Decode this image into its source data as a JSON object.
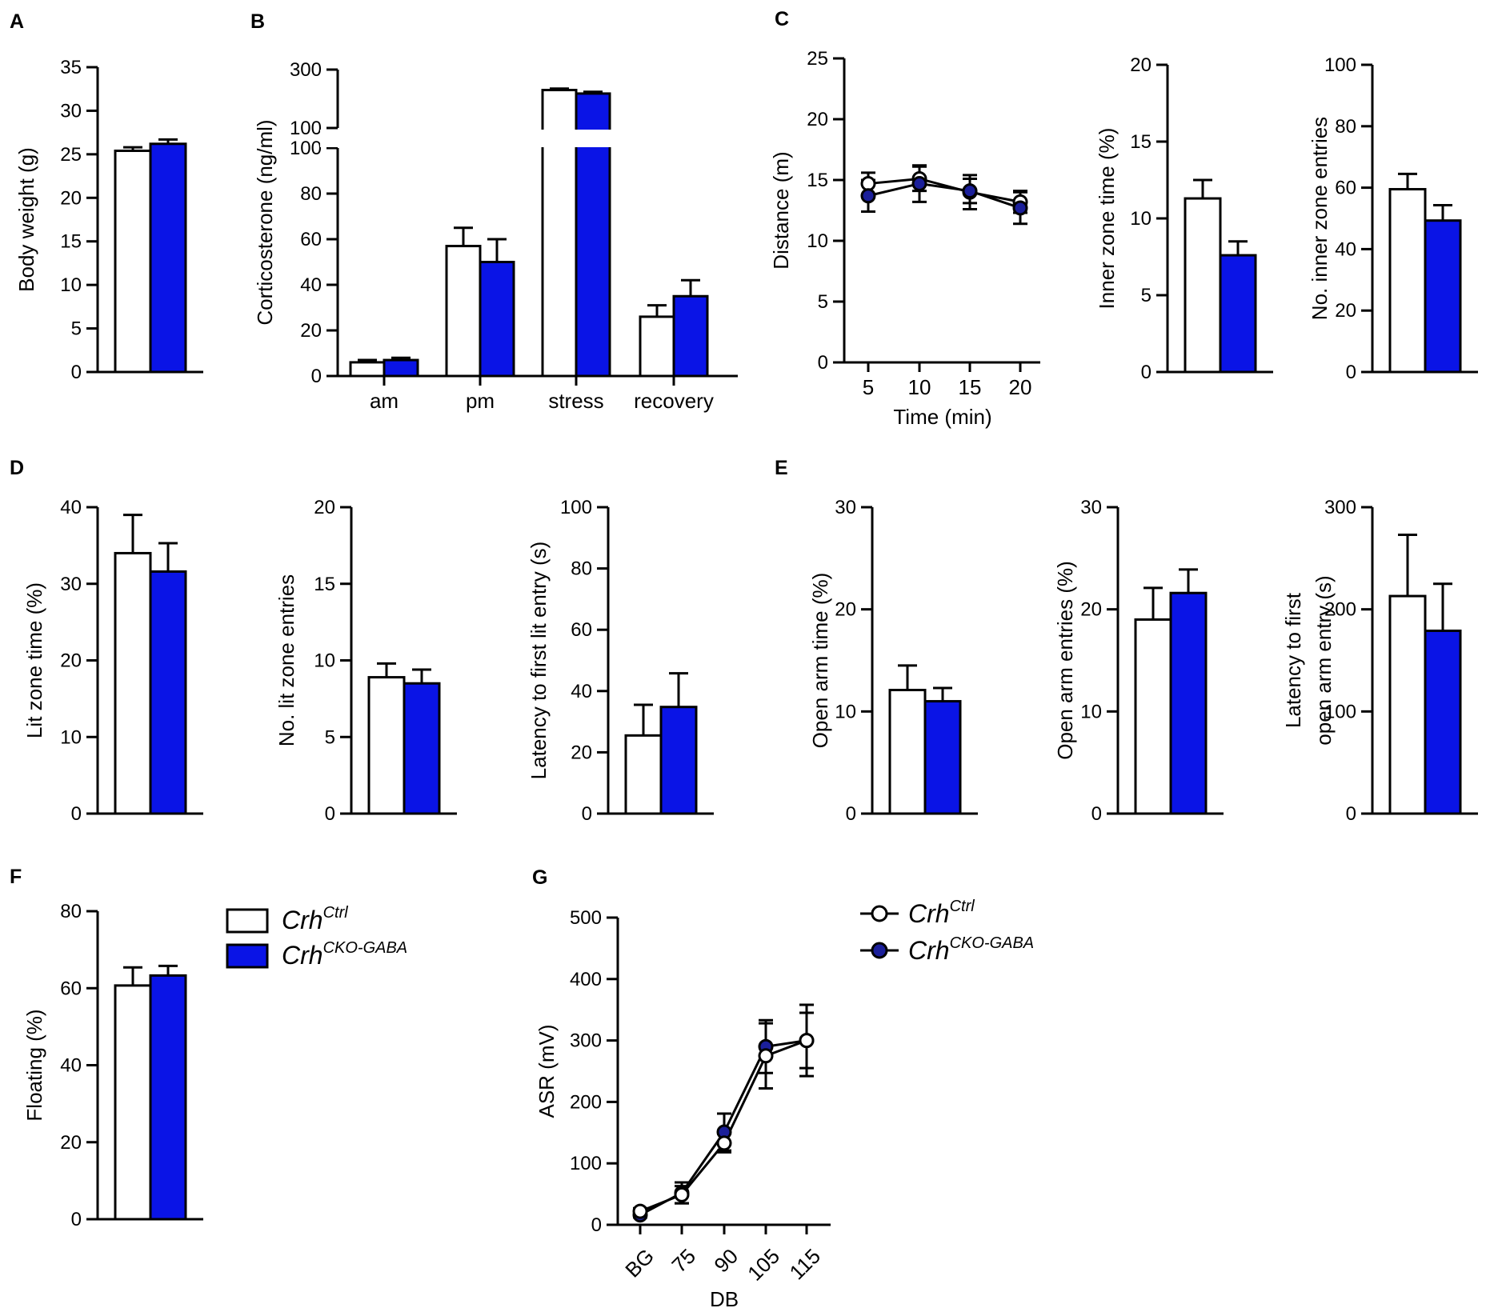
{
  "figure": {
    "legend_bar": {
      "ctrl": "Crh",
      "ctrl_sup": "Ctrl",
      "cko": "Crh",
      "cko_sup": "CKO-GABA"
    },
    "legend_line": {
      "ctrl": "Crh",
      "ctrl_sup": "Ctrl",
      "cko": "Crh",
      "cko_sup": "CKO-GABA"
    }
  },
  "colors": {
    "ctrl": "#ffffff",
    "cko": "#0a14e6",
    "cko_marker": "#1b1f9a",
    "axis": "#000000"
  },
  "chart_data": [
    {
      "id": "A",
      "panel_label": "A",
      "type": "bar",
      "ylabel": "Body weight (g)",
      "ylim": [
        0,
        35
      ],
      "yticks": [
        0,
        5,
        10,
        15,
        20,
        25,
        30,
        35
      ],
      "categories": [
        ""
      ],
      "series": [
        {
          "name": "CrhCtrl",
          "values": [
            25.4
          ],
          "errors": [
            0.4
          ]
        },
        {
          "name": "CrhCKO-GABA",
          "values": [
            26.2
          ],
          "errors": [
            0.5
          ]
        }
      ]
    },
    {
      "id": "B",
      "panel_label": "B",
      "type": "bar",
      "ylabel": "Corticosterone (ng/ml)",
      "broken_axis": true,
      "ylim": [
        0,
        300
      ],
      "ylim_lower": [
        0,
        100
      ],
      "ylim_upper": [
        100,
        300
      ],
      "yticks_lower": [
        0,
        20,
        40,
        60,
        80,
        100
      ],
      "yticks_upper": [
        100,
        300
      ],
      "categories": [
        "am",
        "pm",
        "stress",
        "recovery"
      ],
      "series": [
        {
          "name": "CrhCtrl",
          "values": [
            6,
            57,
            230,
            26
          ],
          "errors": [
            1,
            8,
            5,
            5
          ]
        },
        {
          "name": "CrhCKO-GABA",
          "values": [
            7,
            50,
            218,
            35
          ],
          "errors": [
            1,
            10,
            6,
            7
          ]
        }
      ]
    },
    {
      "id": "C1",
      "panel_label": "C",
      "type": "line",
      "ylabel": "Distance (m)",
      "xlabel": "Time (min)",
      "ylim": [
        0,
        25
      ],
      "yticks": [
        0,
        5,
        10,
        15,
        20,
        25
      ],
      "x": [
        5,
        10,
        15,
        20
      ],
      "series": [
        {
          "name": "CrhCtrl",
          "values": [
            14.7,
            15.1,
            14.0,
            13.2
          ],
          "errors": [
            0.9,
            1.0,
            1.4,
            0.9
          ]
        },
        {
          "name": "CrhCKO-GABA",
          "values": [
            13.7,
            14.7,
            14.1,
            12.7
          ],
          "errors": [
            1.3,
            1.5,
            1.0,
            1.3
          ]
        }
      ]
    },
    {
      "id": "C2",
      "panel_label": "",
      "type": "bar",
      "ylabel": "Inner zone time (%)",
      "ylim": [
        0,
        20
      ],
      "yticks": [
        0,
        5,
        10,
        15,
        20
      ],
      "categories": [
        ""
      ],
      "series": [
        {
          "name": "CrhCtrl",
          "values": [
            11.3
          ],
          "errors": [
            1.2
          ]
        },
        {
          "name": "CrhCKO-GABA",
          "values": [
            7.6
          ],
          "errors": [
            0.9
          ]
        }
      ]
    },
    {
      "id": "C3",
      "panel_label": "",
      "type": "bar",
      "ylabel": "No. inner zone entries",
      "ylim": [
        0,
        100
      ],
      "yticks": [
        0,
        20,
        40,
        60,
        80,
        100
      ],
      "categories": [
        ""
      ],
      "series": [
        {
          "name": "CrhCtrl",
          "values": [
            59.5
          ],
          "errors": [
            5
          ]
        },
        {
          "name": "CrhCKO-GABA",
          "values": [
            49.3
          ],
          "errors": [
            5
          ]
        }
      ]
    },
    {
      "id": "D1",
      "panel_label": "D",
      "type": "bar",
      "ylabel": "Lit zone time (%)",
      "ylim": [
        0,
        40
      ],
      "yticks": [
        0,
        10,
        20,
        30,
        40
      ],
      "categories": [
        ""
      ],
      "series": [
        {
          "name": "CrhCtrl",
          "values": [
            34
          ],
          "errors": [
            5
          ]
        },
        {
          "name": "CrhCKO-GABA",
          "values": [
            31.6
          ],
          "errors": [
            3.7
          ]
        }
      ]
    },
    {
      "id": "D2",
      "panel_label": "",
      "type": "bar",
      "ylabel": "No. lit zone entries",
      "ylim": [
        0,
        20
      ],
      "yticks": [
        0,
        5,
        10,
        15,
        20
      ],
      "categories": [
        ""
      ],
      "series": [
        {
          "name": "CrhCtrl",
          "values": [
            8.9
          ],
          "errors": [
            0.9
          ]
        },
        {
          "name": "CrhCKO-GABA",
          "values": [
            8.5
          ],
          "errors": [
            0.9
          ]
        }
      ]
    },
    {
      "id": "D3",
      "panel_label": "",
      "type": "bar",
      "ylabel": "Latency to first lit entry (s)",
      "ylim": [
        0,
        100
      ],
      "yticks": [
        0,
        20,
        40,
        60,
        80,
        100
      ],
      "categories": [
        ""
      ],
      "series": [
        {
          "name": "CrhCtrl",
          "values": [
            25.5
          ],
          "errors": [
            10
          ]
        },
        {
          "name": "CrhCKO-GABA",
          "values": [
            34.8
          ],
          "errors": [
            11
          ]
        }
      ]
    },
    {
      "id": "E1",
      "panel_label": "E",
      "type": "bar",
      "ylabel": "Open arm time (%)",
      "ylim": [
        0,
        30
      ],
      "yticks": [
        0,
        10,
        20,
        30
      ],
      "categories": [
        ""
      ],
      "series": [
        {
          "name": "CrhCtrl",
          "values": [
            12.1
          ],
          "errors": [
            2.4
          ]
        },
        {
          "name": "CrhCKO-GABA",
          "values": [
            11.0
          ],
          "errors": [
            1.3
          ]
        }
      ]
    },
    {
      "id": "E2",
      "panel_label": "",
      "type": "bar",
      "ylabel": "Open arm entries (%)",
      "ylim": [
        0,
        30
      ],
      "yticks": [
        0,
        10,
        20,
        30
      ],
      "categories": [
        ""
      ],
      "series": [
        {
          "name": "CrhCtrl",
          "values": [
            19.0
          ],
          "errors": [
            3.1
          ]
        },
        {
          "name": "CrhCKO-GABA",
          "values": [
            21.6
          ],
          "errors": [
            2.3
          ]
        }
      ]
    },
    {
      "id": "E3",
      "panel_label": "",
      "type": "bar",
      "ylabel": "Latency to first open arm entry (s)",
      "ylabel_lines": [
        "Latency to first",
        "open arm entry (s)"
      ],
      "ylim": [
        0,
        300
      ],
      "yticks": [
        0,
        100,
        200,
        300
      ],
      "categories": [
        ""
      ],
      "series": [
        {
          "name": "CrhCtrl",
          "values": [
            213
          ],
          "errors": [
            60
          ]
        },
        {
          "name": "CrhCKO-GABA",
          "values": [
            179
          ],
          "errors": [
            46
          ]
        }
      ]
    },
    {
      "id": "F",
      "panel_label": "F",
      "type": "bar",
      "ylabel": "Floating (%)",
      "ylim": [
        0,
        80
      ],
      "yticks": [
        0,
        20,
        40,
        60,
        80
      ],
      "categories": [
        ""
      ],
      "series": [
        {
          "name": "CrhCtrl",
          "values": [
            60.7
          ],
          "errors": [
            4.7
          ]
        },
        {
          "name": "CrhCKO-GABA",
          "values": [
            63.3
          ],
          "errors": [
            2.5
          ]
        }
      ]
    },
    {
      "id": "G",
      "panel_label": "G",
      "type": "line",
      "ylabel": "ASR (mV)",
      "xlabel": "DB",
      "ylim": [
        0,
        500
      ],
      "yticks": [
        0,
        100,
        200,
        300,
        400,
        500
      ],
      "x": [
        "BG",
        "75",
        "90",
        "105",
        "115"
      ],
      "series": [
        {
          "name": "CrhCtrl",
          "values": [
            22,
            49,
            133,
            275,
            300
          ],
          "errors": [
            5,
            14,
            15,
            53,
            58
          ]
        },
        {
          "name": "CrhCKO-GABA",
          "values": [
            16,
            52,
            151,
            290,
            300
          ],
          "errors": [
            4,
            17,
            30,
            43,
            45
          ]
        }
      ]
    }
  ]
}
